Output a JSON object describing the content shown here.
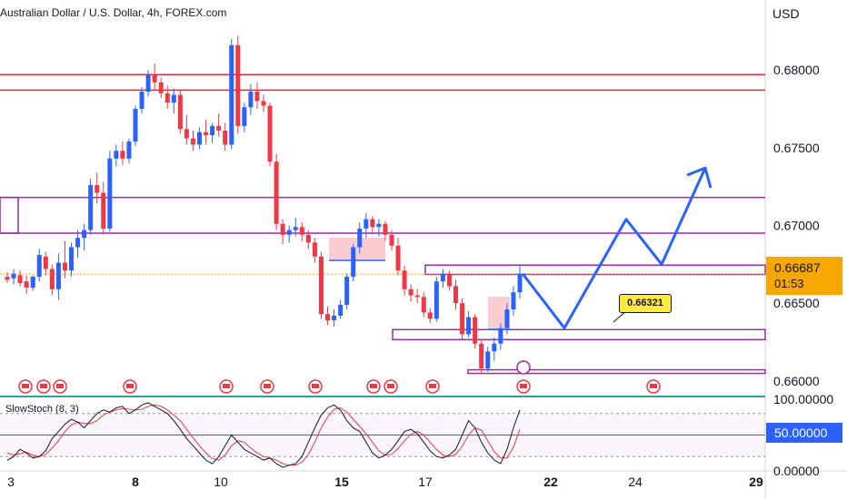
{
  "chart_data": {
    "type": "candlestick",
    "title": "Australian Dollar / U.S. Dollar, 4h, FOREX.com",
    "currency": "USD",
    "current_price": "0.66687",
    "countdown": "01:53",
    "callout": "0.66321",
    "price_ticks": [
      "0.68000",
      "0.67500",
      "0.67000",
      "0.66500",
      "0.66000"
    ],
    "x_ticks": [
      {
        "label": "3",
        "bold": false
      },
      {
        "label": "8",
        "bold": true
      },
      {
        "label": "10",
        "bold": false
      },
      {
        "label": "15",
        "bold": true
      },
      {
        "label": "17",
        "bold": false
      },
      {
        "label": "22",
        "bold": true
      },
      {
        "label": "24",
        "bold": false
      },
      {
        "label": "29",
        "bold": true
      }
    ],
    "colors": {
      "up": "#2962ff",
      "down": "#f23645",
      "resistance": "#e0293a",
      "zone": "#9c27b0",
      "projection": "#2962ff",
      "indicator_k": "#131722",
      "indicator_d": "#f23645",
      "teal": "#26a69a"
    },
    "red_levels": [
      0.6797,
      0.6787
    ],
    "purple_levels": [
      0.6718,
      0.6695,
      0.66745,
      0.6672,
      0.6633,
      0.663,
      0.6606
    ],
    "projection": [
      [
        0.6669,
        0.6666
      ],
      [
        0.6634,
        0.6632
      ],
      [
        0.6704,
        0.6704
      ],
      [
        0.6675,
        0.6675
      ],
      [
        0.6737,
        0.6737
      ]
    ],
    "candles": [
      [
        0.6667,
        0.667,
        0.6663,
        0.6665
      ],
      [
        0.6666,
        0.6672,
        0.6662,
        0.6669
      ],
      [
        0.6668,
        0.6671,
        0.6661,
        0.6663
      ],
      [
        0.6664,
        0.6668,
        0.6656,
        0.666
      ],
      [
        0.666,
        0.6668,
        0.6658,
        0.6667
      ],
      [
        0.6667,
        0.6685,
        0.6664,
        0.6681
      ],
      [
        0.668,
        0.6683,
        0.6668,
        0.6672
      ],
      [
        0.6672,
        0.6675,
        0.6655,
        0.6659
      ],
      [
        0.6659,
        0.6682,
        0.6652,
        0.6676
      ],
      [
        0.6676,
        0.669,
        0.6666,
        0.6671
      ],
      [
        0.6671,
        0.6689,
        0.6667,
        0.6686
      ],
      [
        0.6686,
        0.6697,
        0.6679,
        0.6692
      ],
      [
        0.6692,
        0.6701,
        0.6684,
        0.6697
      ],
      [
        0.6697,
        0.673,
        0.6694,
        0.6726
      ],
      [
        0.6726,
        0.6734,
        0.6714,
        0.6721
      ],
      [
        0.6721,
        0.6728,
        0.6694,
        0.6698
      ],
      [
        0.6698,
        0.6748,
        0.6696,
        0.6743
      ],
      [
        0.6743,
        0.6752,
        0.6738,
        0.6748
      ],
      [
        0.6748,
        0.6754,
        0.6739,
        0.6743
      ],
      [
        0.6743,
        0.6756,
        0.674,
        0.6754
      ],
      [
        0.6754,
        0.6777,
        0.6751,
        0.6775
      ],
      [
        0.6775,
        0.6789,
        0.6772,
        0.6786
      ],
      [
        0.6786,
        0.68,
        0.6783,
        0.6797
      ],
      [
        0.6797,
        0.6804,
        0.6787,
        0.6792
      ],
      [
        0.6792,
        0.6795,
        0.6782,
        0.6785
      ],
      [
        0.6785,
        0.679,
        0.6775,
        0.6779
      ],
      [
        0.6779,
        0.6788,
        0.6772,
        0.6784
      ],
      [
        0.6784,
        0.6787,
        0.6759,
        0.6762
      ],
      [
        0.6762,
        0.6771,
        0.6752,
        0.6756
      ],
      [
        0.6756,
        0.6761,
        0.6748,
        0.6752
      ],
      [
        0.6752,
        0.6763,
        0.6749,
        0.676
      ],
      [
        0.676,
        0.6768,
        0.6752,
        0.6758
      ],
      [
        0.6758,
        0.6766,
        0.6753,
        0.6764
      ],
      [
        0.6764,
        0.6772,
        0.6757,
        0.6761
      ],
      [
        0.6761,
        0.6766,
        0.6748,
        0.6752
      ],
      [
        0.6752,
        0.682,
        0.6749,
        0.6816
      ],
      [
        0.6816,
        0.6822,
        0.6759,
        0.6764
      ],
      [
        0.6764,
        0.6779,
        0.676,
        0.6776
      ],
      [
        0.6776,
        0.6791,
        0.6771,
        0.6786
      ],
      [
        0.6786,
        0.6792,
        0.6775,
        0.678
      ],
      [
        0.678,
        0.6784,
        0.6773,
        0.6777
      ],
      [
        0.6777,
        0.6779,
        0.6738,
        0.6741
      ],
      [
        0.6741,
        0.6746,
        0.6697,
        0.6701
      ],
      [
        0.6701,
        0.6704,
        0.6688,
        0.6694
      ],
      [
        0.6694,
        0.67,
        0.6689,
        0.6697
      ],
      [
        0.6697,
        0.6705,
        0.6693,
        0.6699
      ],
      [
        0.6699,
        0.6702,
        0.669,
        0.6694
      ],
      [
        0.6694,
        0.6697,
        0.6685,
        0.6689
      ],
      [
        0.6689,
        0.6692,
        0.6676,
        0.668
      ],
      [
        0.668,
        0.6683,
        0.664,
        0.6643
      ],
      [
        0.6643,
        0.6648,
        0.6636,
        0.6639
      ],
      [
        0.6639,
        0.6646,
        0.6635,
        0.6642
      ],
      [
        0.6642,
        0.6652,
        0.664,
        0.6649
      ],
      [
        0.6649,
        0.6669,
        0.6646,
        0.6667
      ],
      [
        0.6667,
        0.6688,
        0.6664,
        0.6686
      ],
      [
        0.6686,
        0.6702,
        0.6682,
        0.6698
      ],
      [
        0.6698,
        0.6708,
        0.6692,
        0.6704
      ],
      [
        0.6704,
        0.6706,
        0.6694,
        0.6699
      ],
      [
        0.6699,
        0.6704,
        0.6693,
        0.6701
      ],
      [
        0.6701,
        0.6703,
        0.669,
        0.6694
      ],
      [
        0.6694,
        0.6697,
        0.6684,
        0.6687
      ],
      [
        0.6687,
        0.6692,
        0.6668,
        0.6671
      ],
      [
        0.6671,
        0.6674,
        0.6655,
        0.6659
      ],
      [
        0.6659,
        0.6662,
        0.6651,
        0.6655
      ],
      [
        0.6655,
        0.6659,
        0.665,
        0.6654
      ],
      [
        0.6654,
        0.6657,
        0.6641,
        0.6644
      ],
      [
        0.6644,
        0.6647,
        0.6637,
        0.664
      ],
      [
        0.664,
        0.6667,
        0.6638,
        0.6664
      ],
      [
        0.6664,
        0.6672,
        0.666,
        0.6669
      ],
      [
        0.6669,
        0.6671,
        0.6658,
        0.6661
      ],
      [
        0.6661,
        0.6665,
        0.6646,
        0.665
      ],
      [
        0.665,
        0.6653,
        0.6627,
        0.663
      ],
      [
        0.663,
        0.6645,
        0.6628,
        0.6641
      ],
      [
        0.6641,
        0.6643,
        0.6621,
        0.6624
      ],
      [
        0.6624,
        0.6627,
        0.6605,
        0.6608
      ],
      [
        0.6608,
        0.6622,
        0.6606,
        0.6619
      ],
      [
        0.6619,
        0.6628,
        0.6613,
        0.6624
      ],
      [
        0.6624,
        0.6637,
        0.662,
        0.6634
      ],
      [
        0.6634,
        0.665,
        0.663,
        0.6646
      ],
      [
        0.6646,
        0.6661,
        0.6642,
        0.6657
      ],
      [
        0.6657,
        0.6675,
        0.6653,
        0.6669
      ]
    ],
    "indicator": {
      "name": "SlowStoch (8, 3)",
      "badge": "50.00000",
      "ticks": [
        "100.00000",
        "0.00000"
      ],
      "k": [
        15,
        20,
        30,
        25,
        18,
        20,
        28,
        45,
        55,
        65,
        72,
        68,
        60,
        70,
        80,
        85,
        82,
        88,
        90,
        80,
        85,
        92,
        95,
        90,
        85,
        80,
        70,
        58,
        45,
        35,
        25,
        15,
        10,
        20,
        35,
        50,
        40,
        30,
        25,
        20,
        15,
        18,
        10,
        5,
        8,
        10,
        20,
        40,
        60,
        78,
        88,
        92,
        85,
        70,
        60,
        55,
        40,
        25,
        18,
        22,
        30,
        42,
        55,
        58,
        52,
        40,
        28,
        20,
        18,
        22,
        30,
        50,
        70,
        60,
        40,
        25,
        15,
        10,
        30,
        60,
        85
      ],
      "d": [
        25,
        22,
        24,
        26,
        22,
        20,
        23,
        32,
        42,
        55,
        64,
        68,
        66,
        66,
        70,
        78,
        82,
        85,
        87,
        86,
        85,
        86,
        90,
        92,
        90,
        85,
        78,
        70,
        58,
        46,
        35,
        25,
        17,
        15,
        22,
        35,
        42,
        40,
        32,
        25,
        20,
        18,
        15,
        10,
        8,
        8,
        12,
        23,
        40,
        60,
        75,
        86,
        88,
        82,
        72,
        62,
        52,
        40,
        28,
        22,
        23,
        31,
        42,
        51,
        55,
        50,
        40,
        30,
        22,
        20,
        23,
        34,
        50,
        60,
        57,
        42,
        27,
        18,
        18,
        33,
        58
      ]
    }
  }
}
